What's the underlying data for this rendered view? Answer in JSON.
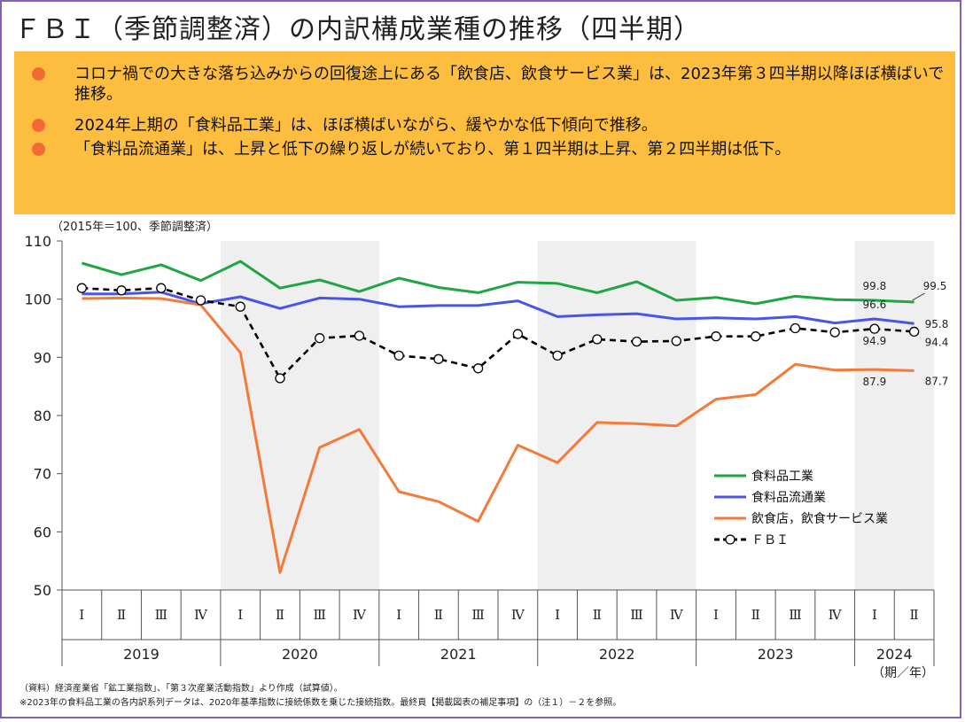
{
  "title": "ＦＢＩ（季節調整済）の内訳構成業種の推移（四半期）",
  "summary": {
    "bullets": [
      "コロナ禍での大きな落ち込みからの回復途上にある「飲食店、飲食サービス業」は、2023年第３四半期以降ほぼ横ばいで推移。",
      "2024年上期の「食料品工業」は、ほぼ横ばいながら、緩やかな低下傾向で推移。",
      "「食料品流通業」は、上昇と低下の繰り返しが続いており、第１四半期は上昇、第２四半期は低下。"
    ],
    "bullet_color": "#f46a35",
    "background": "#fdbd3f"
  },
  "chart_data": {
    "type": "line",
    "unit_label": "（2015年＝100、季節調整済）",
    "x_unit_label": "（期／年）",
    "ylim": [
      50,
      110
    ],
    "yticks": [
      50,
      60,
      70,
      80,
      90,
      100,
      110
    ],
    "quarters": [
      "Ⅰ",
      "Ⅱ",
      "Ⅲ",
      "Ⅳ",
      "Ⅰ",
      "Ⅱ",
      "Ⅲ",
      "Ⅳ",
      "Ⅰ",
      "Ⅱ",
      "Ⅲ",
      "Ⅳ",
      "Ⅰ",
      "Ⅱ",
      "Ⅲ",
      "Ⅳ",
      "Ⅰ",
      "Ⅱ",
      "Ⅲ",
      "Ⅳ",
      "Ⅰ",
      "Ⅱ"
    ],
    "years": [
      {
        "label": "2019",
        "start": 0,
        "count": 4
      },
      {
        "label": "2020",
        "start": 4,
        "count": 4
      },
      {
        "label": "2021",
        "start": 8,
        "count": 4
      },
      {
        "label": "2022",
        "start": 12,
        "count": 4
      },
      {
        "label": "2023",
        "start": 16,
        "count": 4
      },
      {
        "label": "2024",
        "start": 20,
        "count": 2
      }
    ],
    "shaded_years": [
      1,
      3,
      5
    ],
    "series": [
      {
        "name": "食料品工業",
        "color": "#1fa543",
        "dash": false,
        "markers": false,
        "values": [
          106.2,
          104.2,
          105.9,
          103.2,
          106.5,
          101.9,
          103.3,
          101.3,
          103.6,
          102.0,
          101.1,
          102.9,
          102.7,
          101.1,
          103.0,
          99.8,
          100.3,
          99.2,
          100.5,
          99.9,
          99.8,
          99.5
        ]
      },
      {
        "name": "食料品流通業",
        "color": "#4a54e8",
        "dash": false,
        "markers": false,
        "values": [
          100.9,
          100.9,
          101.2,
          99.2,
          100.4,
          98.4,
          100.2,
          100.0,
          98.7,
          98.9,
          98.9,
          99.7,
          97.0,
          97.3,
          97.5,
          96.6,
          96.8,
          96.6,
          97.0,
          95.9,
          96.6,
          95.8
        ]
      },
      {
        "name": "飲食店，飲食サービス業",
        "color": "#f47a3a",
        "dash": false,
        "markers": false,
        "values": [
          100.1,
          100.2,
          100.1,
          99.0,
          90.8,
          53.0,
          74.5,
          77.6,
          66.9,
          65.2,
          61.8,
          74.9,
          71.9,
          78.8,
          78.6,
          78.2,
          82.8,
          83.6,
          88.8,
          87.8,
          87.9,
          87.7
        ]
      },
      {
        "name": "ＦＢＩ",
        "color": "#000000",
        "dash": true,
        "markers": true,
        "values": [
          101.9,
          101.5,
          101.9,
          99.8,
          98.7,
          86.4,
          93.3,
          93.7,
          90.3,
          89.7,
          88.1,
          94.0,
          90.3,
          93.1,
          92.7,
          92.8,
          93.6,
          93.6,
          95.0,
          94.3,
          94.9,
          94.4
        ]
      }
    ],
    "data_labels": [
      {
        "series": 0,
        "index": 20,
        "text": "99.8",
        "pos": "above"
      },
      {
        "series": 0,
        "index": 21,
        "text": "99.5",
        "pos": "right-above"
      },
      {
        "series": 1,
        "index": 20,
        "text": "96.6",
        "pos": "above"
      },
      {
        "series": 1,
        "index": 21,
        "text": "95.8",
        "pos": "right"
      },
      {
        "series": 3,
        "index": 20,
        "text": "94.9",
        "pos": "below"
      },
      {
        "series": 3,
        "index": 21,
        "text": "94.4",
        "pos": "right-below"
      },
      {
        "series": 2,
        "index": 20,
        "text": "87.9",
        "pos": "below"
      },
      {
        "series": 2,
        "index": 21,
        "text": "87.7",
        "pos": "right-below"
      }
    ],
    "legend_position": "lower-right"
  },
  "notes": [
    "（資料）経済産業省「鉱工業指数」、「第３次産業活動指数」より作成（試算値）。",
    "※2023年の食料品工業の各内訳系列データは、2020年基準指数に接続係数を乗じた接続指数。最終頁【掲載図表の補足事項】の（注１）－２を参照。"
  ]
}
